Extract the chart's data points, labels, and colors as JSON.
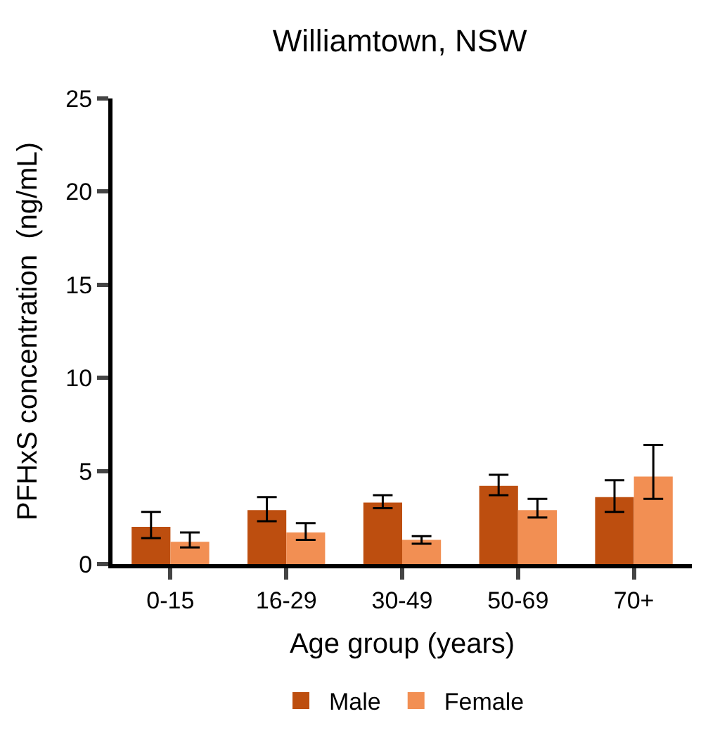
{
  "chart_data": {
    "type": "bar",
    "title": "Williamtown, NSW",
    "xlabel": "Age group (years)",
    "ylabel": "PFHxS concentration  (ng/mL)",
    "categories": [
      "0-15",
      "16-29",
      "30-49",
      "50-69",
      "70+"
    ],
    "series": [
      {
        "name": "Male",
        "color": "#bd4e0f",
        "values": [
          2.0,
          2.9,
          3.3,
          4.2,
          3.6
        ],
        "errors": [
          [
            1.4,
            2.8
          ],
          [
            2.3,
            3.6
          ],
          [
            3.0,
            3.7
          ],
          [
            3.7,
            4.8
          ],
          [
            2.8,
            4.5
          ]
        ]
      },
      {
        "name": "Female",
        "color": "#f28f53",
        "values": [
          1.2,
          1.7,
          1.3,
          2.9,
          4.7
        ],
        "errors": [
          [
            0.9,
            1.7
          ],
          [
            1.3,
            2.2
          ],
          [
            1.1,
            1.5
          ],
          [
            2.5,
            3.5
          ],
          [
            3.5,
            6.4
          ]
        ]
      }
    ],
    "ylim": [
      0,
      25
    ],
    "yticks": [
      0,
      5,
      10,
      15,
      20,
      25
    ],
    "legend": "bottom"
  }
}
